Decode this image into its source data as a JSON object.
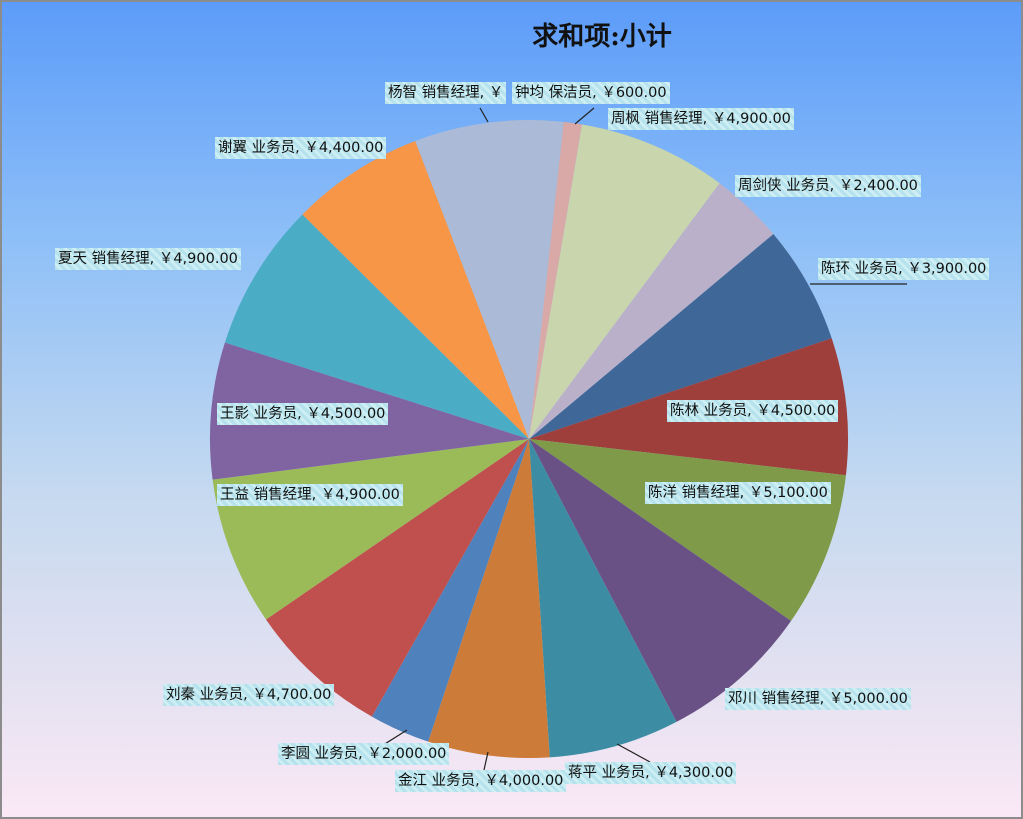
{
  "chart_data": {
    "type": "pie",
    "title": "求和项:小计",
    "start_angle_deg": 50,
    "currency_symbol": "￥",
    "slices": [
      {
        "name": "陈环 业务员",
        "value": 3900,
        "label": "陈环 业务员, ￥3,900.00",
        "color": "#3F6797"
      },
      {
        "name": "陈林 业务员",
        "value": 4500,
        "label": "陈林 业务员, ￥4,500.00",
        "color": "#9E3F3C"
      },
      {
        "name": "陈洋 销售经理",
        "value": 5100,
        "label": "陈洋 销售经理, ￥5,100.00",
        "color": "#7F9A48"
      },
      {
        "name": "邓川 销售经理",
        "value": 5000,
        "label": "邓川 销售经理, ￥5,000.00",
        "color": "#695185"
      },
      {
        "name": "蒋平 业务员",
        "value": 4300,
        "label": "蒋平 业务员, ￥4,300.00",
        "color": "#3C8DA3"
      },
      {
        "name": "金江 业务员",
        "value": 4000,
        "label": "金江 业务员, ￥4,000.00",
        "color": "#CC7B38"
      },
      {
        "name": "李圆 业务员",
        "value": 2000,
        "label": "李圆 业务员, ￥2,000.00",
        "color": "#4F81BD"
      },
      {
        "name": "刘秦 业务员",
        "value": 4700,
        "label": "刘秦 业务员, ￥4,700.00",
        "color": "#C0504D"
      },
      {
        "name": "王益 销售经理",
        "value": 4900,
        "label": "王益 销售经理, ￥4,900.00",
        "color": "#9BBB59"
      },
      {
        "name": "王影 业务员",
        "value": 4500,
        "label": "王影 业务员, ￥4,500.00",
        "color": "#8064A2"
      },
      {
        "name": "夏天 销售经理",
        "value": 4900,
        "label": "夏天 销售经理, ￥4,900.00",
        "color": "#4BACC6"
      },
      {
        "name": "谢翼 业务员",
        "value": 4400,
        "label": "谢翼 业务员, ￥4,400.00",
        "color": "#F79646"
      },
      {
        "name": "杨智 销售经理",
        "value": 4900,
        "label": "杨智 销售经理, ￥",
        "color": "#AABAD7"
      },
      {
        "name": "钟均 保洁员",
        "value": 600,
        "label": "钟均 保洁员, ￥600.00",
        "color": "#D9A9A8"
      },
      {
        "name": "周枫 销售经理",
        "value": 4900,
        "label": "周枫 销售经理, ￥4,900.00",
        "color": "#C9D6AD"
      },
      {
        "name": "周剑侠 业务员",
        "value": 2400,
        "label": "周剑侠 业务员, ￥2,400.00",
        "color": "#BAB0C9"
      }
    ]
  }
}
